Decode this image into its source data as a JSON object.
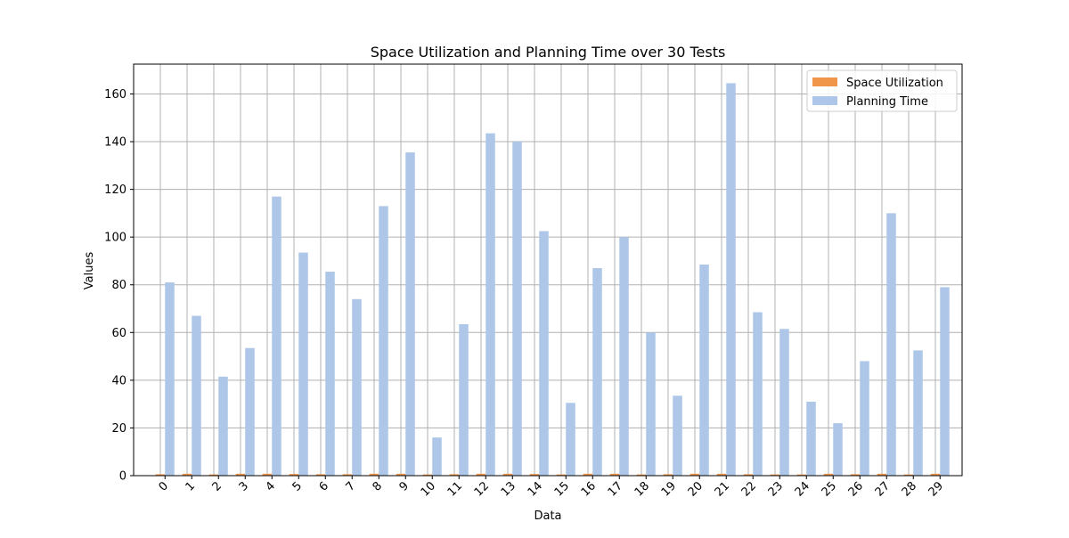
{
  "chart_data": {
    "type": "bar",
    "title": "Space Utilization and Planning Time over 30 Tests",
    "xlabel": "Data",
    "ylabel": "Values",
    "categories": [
      "0",
      "1",
      "2",
      "3",
      "4",
      "5",
      "6",
      "7",
      "8",
      "9",
      "10",
      "11",
      "12",
      "13",
      "14",
      "15",
      "16",
      "17",
      "18",
      "19",
      "20",
      "21",
      "22",
      "23",
      "24",
      "25",
      "26",
      "27",
      "28",
      "29"
    ],
    "ylim": [
      0,
      172.5
    ],
    "yticks": [
      0,
      20,
      40,
      60,
      80,
      100,
      120,
      140,
      160
    ],
    "grid": true,
    "legend_position": "top-right",
    "series": [
      {
        "name": "Space Utilization",
        "color": "#f0964a",
        "values": [
          0.6,
          0.8,
          0.5,
          0.8,
          0.8,
          0.7,
          0.6,
          0.6,
          0.8,
          0.8,
          0.5,
          0.6,
          0.8,
          0.8,
          0.7,
          0.5,
          0.8,
          0.8,
          0.5,
          0.6,
          0.8,
          0.8,
          0.6,
          0.5,
          0.5,
          0.8,
          0.6,
          0.8,
          0.5,
          0.8
        ]
      },
      {
        "name": "Planning Time",
        "color": "#aec7e8",
        "values": [
          81,
          67,
          41.5,
          53.5,
          117,
          93.5,
          85.5,
          74,
          113,
          135.5,
          16,
          63.5,
          143.5,
          140,
          102.5,
          30.5,
          87,
          100,
          60,
          33.5,
          88.5,
          164.5,
          68.5,
          61.5,
          31,
          22,
          48,
          110,
          52.5,
          79
        ]
      }
    ]
  }
}
